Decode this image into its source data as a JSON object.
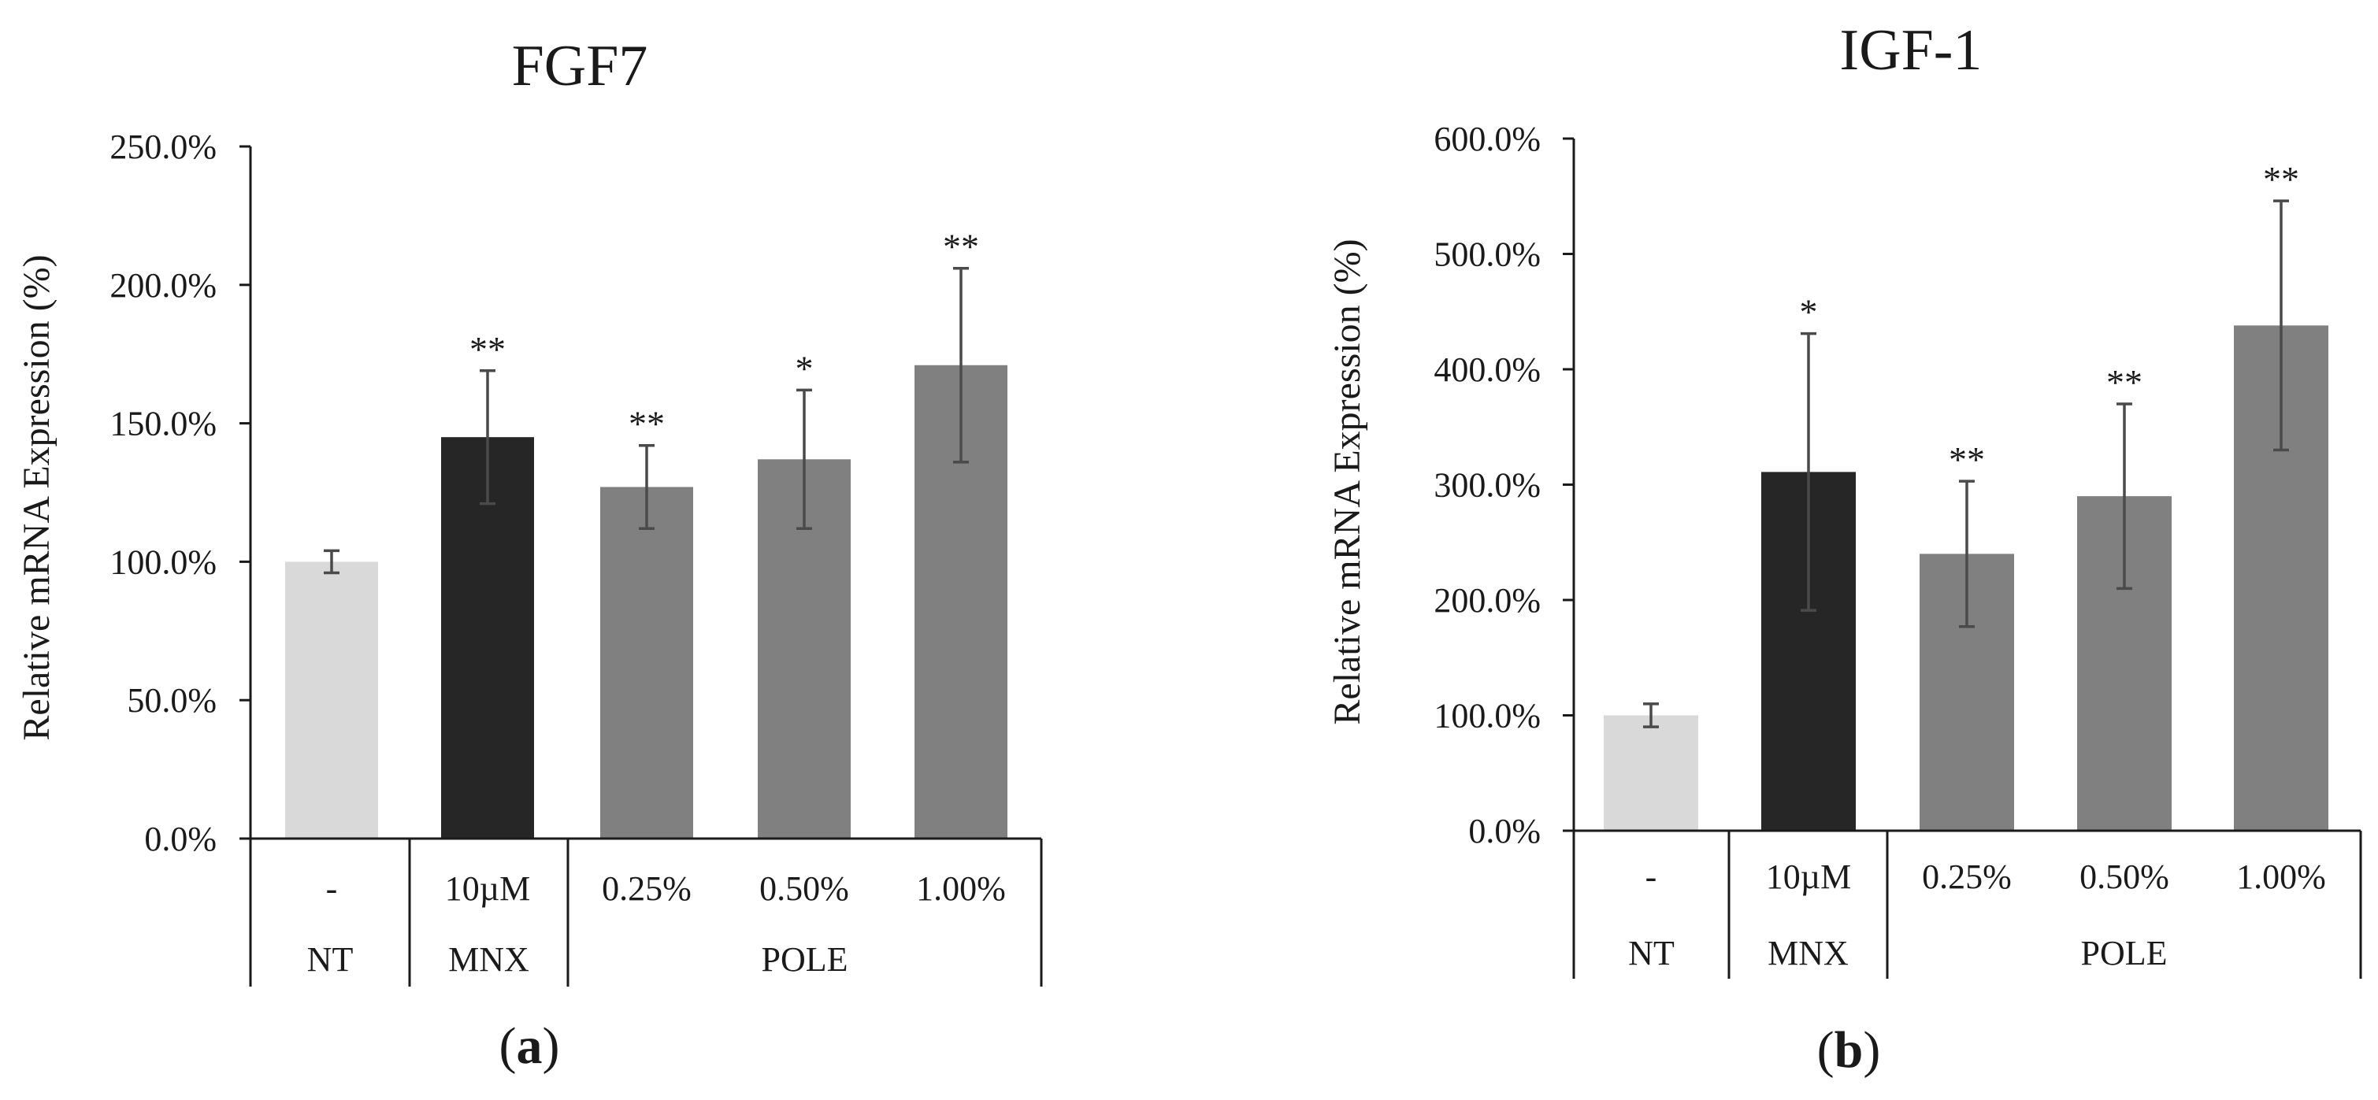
{
  "colors": {
    "nt": "#d9d9d9",
    "mnx": "#262626",
    "pole": "#808080",
    "axis": "#1a1a1a",
    "error_bar": "#4a4a4a",
    "text": "#1a1a1a"
  },
  "chart_data": [
    {
      "type": "bar",
      "title": "FGF7",
      "panel_label": "a",
      "ylabel": "Relative  mRNA Expression (%)",
      "xlabel": "",
      "ylim": [
        0,
        250
      ],
      "yticks": [
        0,
        50,
        100,
        150,
        200,
        250
      ],
      "ytick_labels": [
        "0.0%",
        "50.0%",
        "100.0%",
        "150.0%",
        "200.0%",
        "250.0%"
      ],
      "categories": [
        "-",
        "10µM",
        "0.25%",
        "0.50%",
        "1.00%"
      ],
      "groups": [
        {
          "label": "NT",
          "categories": [
            "-"
          ]
        },
        {
          "label": "MNX",
          "categories": [
            "10µM"
          ]
        },
        {
          "label": "POLE",
          "categories": [
            "0.25%",
            "0.50%",
            "1.00%"
          ]
        }
      ],
      "values": [
        100,
        145,
        127,
        137,
        171
      ],
      "errors": [
        4,
        24,
        15,
        25,
        35
      ],
      "significance": [
        "",
        "**",
        "**",
        "*",
        "**"
      ],
      "bar_colors": [
        "nt",
        "mnx",
        "pole",
        "pole",
        "pole"
      ],
      "grid": false
    },
    {
      "type": "bar",
      "title": "IGF-1",
      "panel_label": "b",
      "ylabel": "Relative  mRNA Expression (%)",
      "xlabel": "",
      "ylim": [
        0,
        600
      ],
      "yticks": [
        0,
        100,
        200,
        300,
        400,
        500,
        600
      ],
      "ytick_labels": [
        "0.0%",
        "100.0%",
        "200.0%",
        "300.0%",
        "400.0%",
        "500.0%",
        "600.0%"
      ],
      "categories": [
        "-",
        "10µM",
        "0.25%",
        "0.50%",
        "1.00%"
      ],
      "groups": [
        {
          "label": "NT",
          "categories": [
            "-"
          ]
        },
        {
          "label": "MNX",
          "categories": [
            "10µM"
          ]
        },
        {
          "label": "POLE",
          "categories": [
            "0.25%",
            "0.50%",
            "1.00%"
          ]
        }
      ],
      "values": [
        100,
        311,
        240,
        290,
        438
      ],
      "errors": [
        10,
        120,
        63,
        80,
        108
      ],
      "significance": [
        "",
        "*",
        "**",
        "**",
        "**"
      ],
      "bar_colors": [
        "nt",
        "mnx",
        "pole",
        "pole",
        "pole"
      ],
      "grid": false
    }
  ]
}
